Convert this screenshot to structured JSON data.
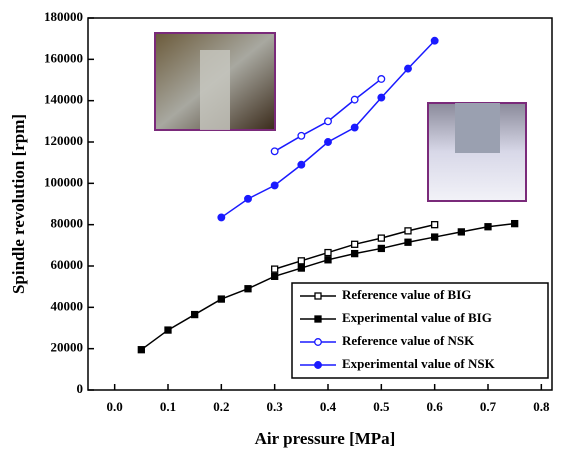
{
  "chart_data": {
    "type": "line",
    "x_label": "Air pressure [MPa]",
    "y_label": "Spindle revolution [rpm]",
    "x": [
      0.05,
      0.1,
      0.15,
      0.2,
      0.25,
      0.3,
      0.35,
      0.4,
      0.45,
      0.5,
      0.55,
      0.6,
      0.65,
      0.7,
      0.75
    ],
    "series": [
      {
        "name": "Reference value of BIG",
        "color": "#000000",
        "marker": "open-square",
        "values": [
          null,
          null,
          null,
          null,
          null,
          58500,
          62500,
          66500,
          70500,
          73500,
          77000,
          80000,
          null,
          null,
          null
        ]
      },
      {
        "name": "Experimental value of BIG",
        "color": "#000000",
        "marker": "filled-square",
        "values": [
          19500,
          29000,
          36500,
          44000,
          49000,
          55000,
          59000,
          63000,
          66000,
          68500,
          71500,
          74000,
          76500,
          79000,
          80500
        ]
      },
      {
        "name": "Reference value of NSK",
        "color": "#1a1aff",
        "marker": "open-circle",
        "values": [
          null,
          null,
          null,
          null,
          null,
          115500,
          123000,
          130000,
          140500,
          150500,
          null,
          null,
          null,
          null,
          null
        ]
      },
      {
        "name": "Experimental value of NSK",
        "color": "#1a1aff",
        "marker": "filled-circle",
        "values": [
          null,
          null,
          null,
          83500,
          92500,
          99000,
          109000,
          120000,
          127000,
          141500,
          155500,
          169000,
          null,
          null,
          null
        ]
      }
    ],
    "xlim": [
      -0.05,
      0.82
    ],
    "xticks": [
      {
        "value": 0,
        "label": "0.0"
      },
      0.1,
      0.2,
      0.3,
      0.4,
      0.5,
      0.6,
      0.7,
      0.8
    ],
    "ylim": [
      0,
      180000
    ],
    "yticks": [
      0,
      20000,
      40000,
      60000,
      80000,
      100000,
      120000,
      140000,
      160000,
      180000
    ],
    "legend": "lower-right"
  }
}
